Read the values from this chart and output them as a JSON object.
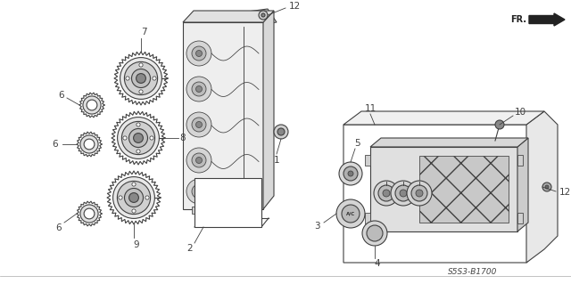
{
  "bg_color": "#ffffff",
  "line_color": "#404040",
  "label_color": "#333333",
  "diagram_code": "S5S3-B1700",
  "fr_text": "FR.",
  "lw": 0.8
}
